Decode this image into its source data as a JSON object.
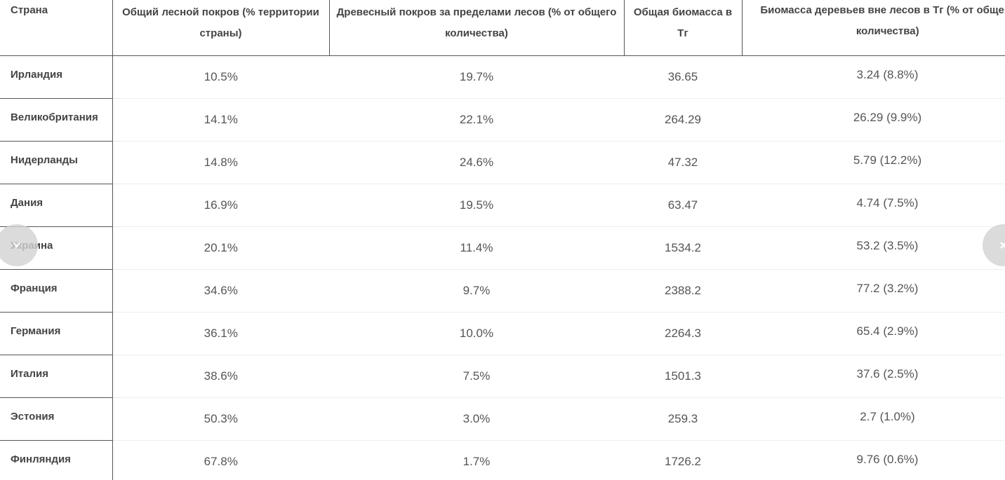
{
  "table": {
    "headers": [
      "Страна",
      "Общий лесной покров (% территории страны)",
      "Древесный покров за пределами лесов (% от общего количества)",
      "Общая биомасса в Тг",
      "Биомасса деревьев вне лесов в Тг (% от общего количества)"
    ],
    "rows": [
      {
        "country": "Ирландия",
        "forest_cover": "10.5%",
        "tree_cover_outside": "19.7%",
        "total_biomass": "36.65",
        "biomass_outside": "3.24 (8.8%)"
      },
      {
        "country": "Великобритания",
        "forest_cover": "14.1%",
        "tree_cover_outside": "22.1%",
        "total_biomass": "264.29",
        "biomass_outside": "26.29 (9.9%)"
      },
      {
        "country": "Нидерланды",
        "forest_cover": "14.8%",
        "tree_cover_outside": "24.6%",
        "total_biomass": "47.32",
        "biomass_outside": "5.79 (12.2%)"
      },
      {
        "country": "Дания",
        "forest_cover": "16.9%",
        "tree_cover_outside": "19.5%",
        "total_biomass": "63.47",
        "biomass_outside": "4.74 (7.5%)"
      },
      {
        "country": "Украина",
        "forest_cover": "20.1%",
        "tree_cover_outside": "11.4%",
        "total_biomass": "1534.2",
        "biomass_outside": "53.2 (3.5%)"
      },
      {
        "country": "Франция",
        "forest_cover": "34.6%",
        "tree_cover_outside": "9.7%",
        "total_biomass": "2388.2",
        "biomass_outside": "77.2 (3.2%)"
      },
      {
        "country": "Германия",
        "forest_cover": "36.1%",
        "tree_cover_outside": "10.0%",
        "total_biomass": "2264.3",
        "biomass_outside": "65.4 (2.9%)"
      },
      {
        "country": "Италия",
        "forest_cover": "38.6%",
        "tree_cover_outside": "7.5%",
        "total_biomass": "1501.3",
        "biomass_outside": "37.6 (2.5%)"
      },
      {
        "country": "Эстония",
        "forest_cover": "50.3%",
        "tree_cover_outside": "3.0%",
        "total_biomass": "259.3",
        "biomass_outside": "2.7 (1.0%)"
      },
      {
        "country": "Финляндия",
        "forest_cover": "67.8%",
        "tree_cover_outside": "1.7%",
        "total_biomass": "1726.2",
        "biomass_outside": "9.76 (0.6%)"
      }
    ]
  },
  "carousel": {
    "prev_icon": "chevron-left-icon",
    "next_icon": "chevron-right-icon"
  }
}
